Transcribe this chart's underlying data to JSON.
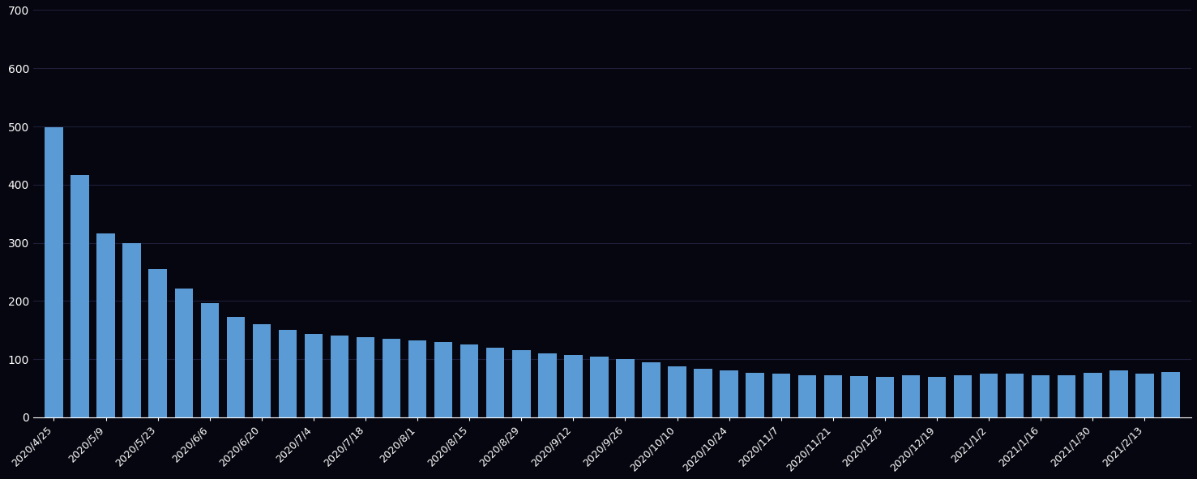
{
  "bar_labels": [
    "2020/4/25",
    "2020/5/9",
    "2020/5/23",
    "2020/6/6",
    "2020/6/20",
    "2020/7/4",
    "2020/7/18",
    "2020/8/1",
    "2020/8/15",
    "2020/8/29",
    "2020/9/12",
    "2020/9/26",
    "2020/10/10",
    "2020/10/24",
    "2020/11/7",
    "2020/11/21",
    "2020/12/5",
    "2020/12/19",
    "2021/1/2",
    "2021/1/16",
    "2021/1/30",
    "2021/2/13"
  ],
  "bar_values": [
    498,
    417,
    316,
    300,
    255,
    222,
    197,
    172,
    160,
    150,
    143,
    140,
    138,
    135,
    132,
    130,
    125,
    120,
    115,
    110,
    107,
    105,
    100,
    95,
    88,
    83,
    80,
    77,
    75,
    73,
    72,
    71,
    70,
    72,
    70,
    72,
    75,
    75,
    73,
    72,
    77,
    80,
    75,
    78
  ],
  "bar_color": "#5b9bd5",
  "background_color": "#060610",
  "text_color": "#ffffff",
  "grid_color": "#1e1e3a",
  "ylim": [
    0,
    700
  ],
  "yticks": [
    0,
    100,
    200,
    300,
    400,
    500,
    600,
    700
  ],
  "label_every": 2,
  "figsize": [
    14.77,
    5.91
  ],
  "dpi": 100
}
